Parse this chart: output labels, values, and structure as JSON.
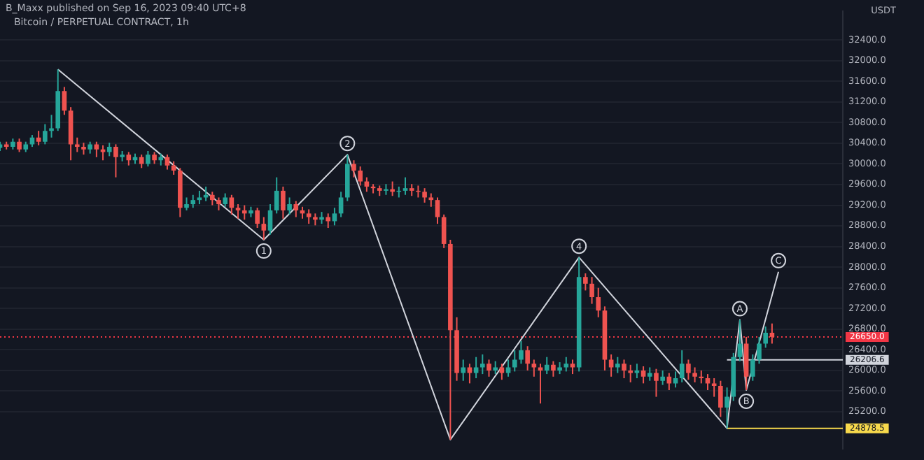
{
  "chart_data": {
    "type": "candlestick",
    "title": "B_Maxx published on Sep 16, 2023 09:40 UTC+8",
    "subtitle": "Bitcoin / PERPETUAL CONTRACT, 1h",
    "ylabel": "USDT",
    "categories": [
      null,
      null,
      null,
      null,
      null,
      null,
      null,
      null,
      null,
      null,
      null,
      null,
      null,
      null,
      null,
      null,
      null,
      null,
      null,
      null,
      null,
      null,
      null,
      null,
      null,
      null,
      null,
      null,
      null,
      null,
      null,
      null,
      null,
      null,
      null,
      null,
      null,
      null,
      null,
      null,
      null,
      null,
      null,
      null,
      null,
      null,
      null,
      null,
      null,
      null,
      null,
      null,
      null,
      null,
      null,
      null,
      null,
      null,
      null,
      null,
      null,
      null,
      null,
      null,
      null,
      null,
      null,
      null,
      null,
      null,
      null,
      null,
      null,
      null,
      null,
      null,
      null,
      null,
      null,
      null,
      null,
      null,
      null,
      null,
      null,
      null,
      null,
      null,
      null,
      null,
      null,
      null,
      null,
      null,
      null,
      null,
      null,
      null,
      null,
      null,
      null,
      null,
      null,
      null,
      null,
      null,
      null,
      null,
      null,
      null,
      null,
      null,
      null,
      null,
      null,
      null,
      null,
      null,
      null,
      null,
      null,
      null,
      null,
      null,
      null,
      null,
      null,
      null,
      null,
      null,
      null,
      null
    ],
    "ohlc": [
      [
        30310,
        30430,
        30250,
        30380
      ],
      [
        30380,
        30430,
        30280,
        30330
      ],
      [
        30330,
        30490,
        30280,
        30430
      ],
      [
        30430,
        30490,
        30230,
        30280
      ],
      [
        30280,
        30430,
        30230,
        30380
      ],
      [
        30380,
        30560,
        30330,
        30510
      ],
      [
        30510,
        30640,
        30360,
        30430
      ],
      [
        30430,
        30770,
        30380,
        30640
      ],
      [
        30640,
        30950,
        30510,
        30690
      ],
      [
        30690,
        31830,
        30640,
        31410
      ],
      [
        31410,
        31490,
        30950,
        31030
      ],
      [
        31030,
        31100,
        30070,
        30380
      ],
      [
        30380,
        30510,
        30230,
        30330
      ],
      [
        30330,
        30410,
        30180,
        30280
      ],
      [
        30280,
        30430,
        30200,
        30380
      ],
      [
        30380,
        30430,
        30130,
        30280
      ],
      [
        30280,
        30360,
        30070,
        30230
      ],
      [
        30230,
        30410,
        30150,
        30330
      ],
      [
        30330,
        30380,
        29740,
        30130
      ],
      [
        30130,
        30250,
        30050,
        30180
      ],
      [
        30180,
        30230,
        29970,
        30070
      ],
      [
        30070,
        30200,
        30000,
        30130
      ],
      [
        30130,
        30180,
        29920,
        30000
      ],
      [
        30000,
        30250,
        29950,
        30180
      ],
      [
        30180,
        30230,
        30000,
        30070
      ],
      [
        30070,
        30200,
        29970,
        30130
      ],
      [
        30130,
        30180,
        29890,
        29970
      ],
      [
        29970,
        30050,
        29790,
        29870
      ],
      [
        29870,
        29920,
        28970,
        29150
      ],
      [
        29150,
        29350,
        29100,
        29220
      ],
      [
        29220,
        29400,
        29150,
        29300
      ],
      [
        29300,
        29480,
        29220,
        29350
      ],
      [
        29350,
        29560,
        29280,
        29400
      ],
      [
        29400,
        29460,
        29200,
        29300
      ],
      [
        29300,
        29350,
        29100,
        29220
      ],
      [
        29220,
        29430,
        29170,
        29350
      ],
      [
        29350,
        29400,
        29020,
        29150
      ],
      [
        29150,
        29220,
        28940,
        29100
      ],
      [
        29100,
        29200,
        28920,
        29040
      ],
      [
        29040,
        29170,
        28970,
        29100
      ],
      [
        29100,
        29150,
        28760,
        28840
      ],
      [
        28840,
        28970,
        28530,
        28710
      ],
      [
        28710,
        29220,
        28630,
        29100
      ],
      [
        29100,
        29740,
        29040,
        29480
      ],
      [
        29480,
        29560,
        28940,
        29100
      ],
      [
        29100,
        29350,
        29020,
        29220
      ],
      [
        29220,
        29280,
        28970,
        29100
      ],
      [
        29100,
        29170,
        28940,
        29040
      ],
      [
        29040,
        29120,
        28840,
        28970
      ],
      [
        28970,
        29040,
        28810,
        28920
      ],
      [
        28920,
        29070,
        28840,
        28970
      ],
      [
        28970,
        29040,
        28760,
        28890
      ],
      [
        28890,
        29150,
        28810,
        29040
      ],
      [
        29040,
        29460,
        28970,
        29350
      ],
      [
        29350,
        30180,
        29280,
        30000
      ],
      [
        30000,
        30070,
        29740,
        29870
      ],
      [
        29870,
        29950,
        29580,
        29660
      ],
      [
        29660,
        29740,
        29460,
        29560
      ],
      [
        29560,
        29610,
        29430,
        29530
      ],
      [
        29530,
        29580,
        29380,
        29480
      ],
      [
        29480,
        29610,
        29400,
        29510
      ],
      [
        29510,
        29660,
        29380,
        29460
      ],
      [
        29460,
        29560,
        29350,
        29480
      ],
      [
        29480,
        29740,
        29400,
        29530
      ],
      [
        29530,
        29610,
        29380,
        29480
      ],
      [
        29480,
        29580,
        29350,
        29460
      ],
      [
        29460,
        29530,
        29250,
        29350
      ],
      [
        29350,
        29430,
        29170,
        29300
      ],
      [
        29300,
        29350,
        28840,
        28970
      ],
      [
        28970,
        29020,
        28370,
        28450
      ],
      [
        28450,
        28530,
        24660,
        26780
      ],
      [
        26780,
        27030,
        25800,
        25950
      ],
      [
        25950,
        26210,
        25800,
        26060
      ],
      [
        26060,
        26130,
        25750,
        25950
      ],
      [
        25950,
        26260,
        25850,
        26060
      ],
      [
        26060,
        26310,
        25930,
        26130
      ],
      [
        26130,
        26210,
        25880,
        26000
      ],
      [
        26000,
        26180,
        25930,
        26060
      ],
      [
        26060,
        26130,
        25820,
        25950
      ],
      [
        25950,
        26210,
        25880,
        26060
      ],
      [
        26060,
        26390,
        25980,
        26210
      ],
      [
        26210,
        26570,
        26130,
        26390
      ],
      [
        26390,
        26470,
        26000,
        26130
      ],
      [
        26130,
        26210,
        25880,
        26060
      ],
      [
        26060,
        26130,
        25360,
        26000
      ],
      [
        26000,
        26260,
        25930,
        26110
      ],
      [
        26110,
        26180,
        25880,
        26000
      ],
      [
        26000,
        26160,
        25930,
        26060
      ],
      [
        26060,
        26260,
        25980,
        26130
      ],
      [
        26130,
        26210,
        25930,
        26060
      ],
      [
        26060,
        28190,
        25980,
        27810
      ],
      [
        27810,
        27880,
        27550,
        27680
      ],
      [
        27680,
        27810,
        27290,
        27420
      ],
      [
        27420,
        27600,
        27030,
        27160
      ],
      [
        27160,
        27240,
        26000,
        26210
      ],
      [
        26210,
        26310,
        25880,
        26060
      ],
      [
        26060,
        26260,
        25950,
        26130
      ],
      [
        26130,
        26210,
        25850,
        26000
      ],
      [
        26000,
        26110,
        25770,
        25950
      ],
      [
        25950,
        26130,
        25850,
        26000
      ],
      [
        26000,
        26080,
        25750,
        25880
      ],
      [
        25880,
        26060,
        25800,
        25950
      ],
      [
        25950,
        26030,
        25490,
        25800
      ],
      [
        25800,
        26000,
        25720,
        25880
      ],
      [
        25880,
        25950,
        25620,
        25750
      ],
      [
        25750,
        25980,
        25670,
        25850
      ],
      [
        25850,
        26390,
        25770,
        26130
      ],
      [
        26130,
        26210,
        25820,
        25950
      ],
      [
        25950,
        26060,
        25770,
        25880
      ],
      [
        25880,
        26000,
        25750,
        25850
      ],
      [
        25850,
        25930,
        25620,
        25750
      ],
      [
        25750,
        25850,
        25490,
        25700
      ],
      [
        25700,
        25800,
        25100,
        25280
      ],
      [
        25280,
        25670,
        24880,
        25490
      ],
      [
        25490,
        26340,
        25410,
        26260
      ],
      [
        26260,
        26980,
        26180,
        26520
      ],
      [
        26520,
        26650,
        25620,
        25880
      ],
      [
        25880,
        26310,
        25800,
        26210
      ],
      [
        26210,
        26650,
        26130,
        26520
      ],
      [
        26520,
        26850,
        26440,
        26730
      ],
      [
        26730,
        26910,
        26520,
        26650
      ],
      null,
      null,
      null,
      null,
      null,
      null,
      null,
      null,
      null,
      null,
      null
    ],
    "colors": [
      "#26a69a",
      "#ef5350",
      "#26a69a",
      "#ef5350",
      "#26a69a",
      "#26a69a",
      "#ef5350",
      "#26a69a",
      "#26a69a",
      "#26a69a",
      "#ef5350",
      "#ef5350",
      "#ef5350",
      "#ef5350",
      "#26a69a",
      "#ef5350",
      "#ef5350",
      "#26a69a",
      "#ef5350",
      "#26a69a",
      "#ef5350",
      "#26a69a",
      "#ef5350",
      "#26a69a",
      "#ef5350",
      "#26a69a",
      "#ef5350",
      "#ef5350",
      "#ef5350",
      "#26a69a",
      "#26a69a",
      "#26a69a",
      "#26a69a",
      "#ef5350",
      "#ef5350",
      "#26a69a",
      "#ef5350",
      "#ef5350",
      "#ef5350",
      "#26a69a",
      "#ef5350",
      "#ef5350",
      "#26a69a",
      "#26a69a",
      "#ef5350",
      "#26a69a",
      "#ef5350",
      "#ef5350",
      "#ef5350",
      "#ef5350",
      "#26a69a",
      "#ef5350",
      "#26a69a",
      "#26a69a",
      "#26a69a",
      "#ef5350",
      "#ef5350",
      "#ef5350",
      "#ef5350",
      "#ef5350",
      "#26a69a",
      "#ef5350",
      "#26a69a",
      "#26a69a",
      "#ef5350",
      "#ef5350",
      "#ef5350",
      "#ef5350",
      "#ef5350",
      "#ef5350",
      "#ef5350",
      "#ef5350",
      "#26a69a",
      "#ef5350",
      "#26a69a",
      "#26a69a",
      "#ef5350",
      "#26a69a",
      "#ef5350",
      "#26a69a",
      "#26a69a",
      "#26a69a",
      "#ef5350",
      "#ef5350",
      "#ef5350",
      "#26a69a",
      "#ef5350",
      "#26a69a",
      "#26a69a",
      "#ef5350",
      "#26a69a",
      "#ef5350",
      "#ef5350",
      "#ef5350",
      "#ef5350",
      "#ef5350",
      "#26a69a",
      "#ef5350",
      "#ef5350",
      "#26a69a",
      "#ef5350",
      "#26a69a",
      "#ef5350",
      "#26a69a",
      "#ef5350",
      "#26a69a",
      "#26a69a",
      "#ef5350",
      "#ef5350",
      "#ef5350",
      "#ef5350",
      "#ef5350",
      "#ef5350",
      "#26a69a",
      "#26a69a",
      "#26a69a",
      "#ef5350",
      "#26a69a",
      "#26a69a",
      "#26a69a",
      "#ef5350",
      null,
      null,
      null,
      null,
      null,
      null,
      null,
      null,
      null,
      null,
      null
    ],
    "series": [
      {
        "type": "line",
        "color": "#d1d4dc",
        "values": [
          null,
          null,
          null,
          null,
          null,
          null,
          null,
          null,
          null,
          31830,
          null,
          null,
          null,
          null,
          null,
          null,
          null,
          null,
          null,
          null,
          null,
          null,
          null,
          null,
          null,
          null,
          null,
          null,
          null,
          null,
          null,
          null,
          null,
          null,
          null,
          null,
          null,
          null,
          null,
          null,
          null,
          28530,
          null,
          null,
          null,
          null,
          null,
          null,
          null,
          null,
          null,
          null,
          null,
          null,
          30180,
          null,
          null,
          null,
          null,
          null,
          null,
          null,
          null,
          null,
          null,
          null,
          null,
          null,
          null,
          null,
          24660,
          null,
          null,
          null,
          null,
          null,
          null,
          null,
          null,
          null,
          null,
          null,
          null,
          null,
          null,
          null,
          null,
          null,
          null,
          null,
          28190,
          null,
          null,
          null,
          null,
          null,
          null,
          null,
          null,
          null,
          null,
          null,
          null,
          null,
          null,
          null,
          null,
          null,
          null,
          null,
          null,
          null,
          null,
          24880,
          null,
          26980,
          25620,
          null,
          null,
          null,
          null,
          27910,
          null,
          null,
          null,
          null,
          null,
          null,
          null,
          null,
          null,
          null
        ]
      },
      {
        "type": "line",
        "color": "#d1d4dc",
        "values": [
          null,
          null,
          null,
          null,
          null,
          null,
          null,
          null,
          null,
          null,
          null,
          null,
          null,
          null,
          null,
          null,
          null,
          null,
          null,
          null,
          null,
          null,
          null,
          null,
          null,
          null,
          null,
          null,
          null,
          null,
          null,
          null,
          null,
          null,
          null,
          null,
          null,
          null,
          null,
          null,
          null,
          null,
          null,
          null,
          null,
          null,
          null,
          null,
          null,
          null,
          null,
          null,
          null,
          null,
          null,
          null,
          null,
          null,
          null,
          null,
          null,
          null,
          null,
          null,
          null,
          null,
          null,
          null,
          null,
          null,
          null,
          null,
          null,
          null,
          null,
          null,
          null,
          null,
          null,
          null,
          null,
          null,
          null,
          null,
          null,
          null,
          null,
          null,
          null,
          null,
          null,
          null,
          null,
          null,
          null,
          null,
          null,
          null,
          null,
          null,
          null,
          null,
          null,
          null,
          null,
          null,
          null,
          null,
          null,
          null,
          null,
          null,
          null,
          26206.6,
          26206.6,
          26206.6,
          26206.6,
          26206.6,
          26206.6,
          26206.6,
          26206.6,
          26206.6,
          26206.6,
          26206.6,
          26206.6,
          26206.6,
          26206.6,
          26206.6,
          26206.6,
          26206.6,
          26206.6,
          26206.6
        ],
        "value_labels": [
          null,
          null,
          null,
          null,
          null,
          null,
          null,
          null,
          null,
          null,
          null,
          null,
          null,
          null,
          null,
          null,
          null,
          null,
          null,
          null,
          null,
          null,
          null,
          null,
          null,
          null,
          null,
          null,
          null,
          null,
          null,
          null,
          null,
          null,
          null,
          null,
          null,
          null,
          null,
          null,
          null,
          null,
          null,
          null,
          null,
          null,
          null,
          null,
          null,
          null,
          null,
          null,
          null,
          null,
          null,
          null,
          null,
          null,
          null,
          null,
          null,
          null,
          null,
          null,
          null,
          null,
          null,
          null,
          null,
          null,
          null,
          null,
          null,
          null,
          null,
          null,
          null,
          null,
          null,
          null,
          null,
          null,
          null,
          null,
          null,
          null,
          null,
          null,
          null,
          null,
          null,
          null,
          null,
          null,
          null,
          null,
          null,
          null,
          null,
          null,
          null,
          null,
          null,
          null,
          null,
          null,
          null,
          null,
          null,
          null,
          null,
          null,
          null,
          null,
          null,
          null,
          null,
          null,
          null,
          null,
          null,
          null,
          null,
          null,
          null,
          null,
          null,
          null,
          null,
          null,
          null,
          "26206.6"
        ]
      },
      {
        "type": "line",
        "color": "#f7d94c",
        "values": [
          null,
          null,
          null,
          null,
          null,
          null,
          null,
          null,
          null,
          null,
          null,
          null,
          null,
          null,
          null,
          null,
          null,
          null,
          null,
          null,
          null,
          null,
          null,
          null,
          null,
          null,
          null,
          null,
          null,
          null,
          null,
          null,
          null,
          null,
          null,
          null,
          null,
          null,
          null,
          null,
          null,
          null,
          null,
          null,
          null,
          null,
          null,
          null,
          null,
          null,
          null,
          null,
          null,
          null,
          null,
          null,
          null,
          null,
          null,
          null,
          null,
          null,
          null,
          null,
          null,
          null,
          null,
          null,
          null,
          null,
          null,
          null,
          null,
          null,
          null,
          null,
          null,
          null,
          null,
          null,
          null,
          null,
          null,
          null,
          null,
          null,
          null,
          null,
          null,
          null,
          null,
          null,
          null,
          null,
          null,
          null,
          null,
          null,
          null,
          null,
          null,
          null,
          null,
          null,
          null,
          null,
          null,
          null,
          null,
          null,
          null,
          null,
          null,
          24878.5,
          24878.5,
          24878.5,
          24878.5,
          24878.5,
          24878.5,
          24878.5,
          24878.5,
          24878.5,
          24878.5,
          24878.5,
          24878.5,
          24878.5,
          24878.5,
          24878.5,
          24878.5,
          24878.5,
          24878.5,
          24878.5
        ],
        "value_labels": [
          null,
          null,
          null,
          null,
          null,
          null,
          null,
          null,
          null,
          null,
          null,
          null,
          null,
          null,
          null,
          null,
          null,
          null,
          null,
          null,
          null,
          null,
          null,
          null,
          null,
          null,
          null,
          null,
          null,
          null,
          null,
          null,
          null,
          null,
          null,
          null,
          null,
          null,
          null,
          null,
          null,
          null,
          null,
          null,
          null,
          null,
          null,
          null,
          null,
          null,
          null,
          null,
          null,
          null,
          null,
          null,
          null,
          null,
          null,
          null,
          null,
          null,
          null,
          null,
          null,
          null,
          null,
          null,
          null,
          null,
          null,
          null,
          null,
          null,
          null,
          null,
          null,
          null,
          null,
          null,
          null,
          null,
          null,
          null,
          null,
          null,
          null,
          null,
          null,
          null,
          null,
          null,
          null,
          null,
          null,
          null,
          null,
          null,
          null,
          null,
          null,
          null,
          null,
          null,
          null,
          null,
          null,
          null,
          null,
          null,
          null,
          null,
          null,
          null,
          null,
          null,
          null,
          null,
          null,
          null,
          null,
          null,
          null,
          null,
          null,
          null,
          null,
          null,
          null,
          null,
          null,
          "24878.5"
        ]
      }
    ],
    "annotations": [
      {
        "text": "1",
        "y": 28530
      },
      {
        "text": "2",
        "y": 30180
      },
      {
        "text": "4",
        "y": 28190
      },
      {
        "text": "A",
        "y": 26980
      },
      {
        "text": "B",
        "y": 25620
      },
      {
        "text": "C",
        "y": 27910
      }
    ],
    "ref_lines": [
      {
        "axis": "y",
        "value": 26650,
        "label": "26650.0",
        "color": "#f23645",
        "line_style": "dotted"
      }
    ],
    "ylim": [
      24480,
      32960
    ],
    "yticks": [
      {
        "value": 25200,
        "label": "25200.0"
      },
      {
        "value": 25600,
        "label": "25600.0"
      },
      {
        "value": 26000,
        "label": "26000.0"
      },
      {
        "value": 26400,
        "label": "26400.0"
      },
      {
        "value": 26800,
        "label": "26800.0"
      },
      {
        "value": 27200,
        "label": "27200.0"
      },
      {
        "value": 27600,
        "label": "27600.0"
      },
      {
        "value": 28000,
        "label": "28000.0"
      },
      {
        "value": 28400,
        "label": "28400.0"
      },
      {
        "value": 28800,
        "label": "28800.0"
      },
      {
        "value": 29200,
        "label": "29200.0"
      },
      {
        "value": 29600,
        "label": "29600.0"
      },
      {
        "value": 30000,
        "label": "30000.0"
      },
      {
        "value": 30400,
        "label": "30400.0"
      },
      {
        "value": 30800,
        "label": "30800.0"
      },
      {
        "value": 31200,
        "label": "31200.0"
      },
      {
        "value": 31600,
        "label": "31600.0"
      },
      {
        "value": 32000,
        "label": "32000.0"
      },
      {
        "value": 32400,
        "label": "32400.0"
      }
    ],
    "grid": "y"
  }
}
